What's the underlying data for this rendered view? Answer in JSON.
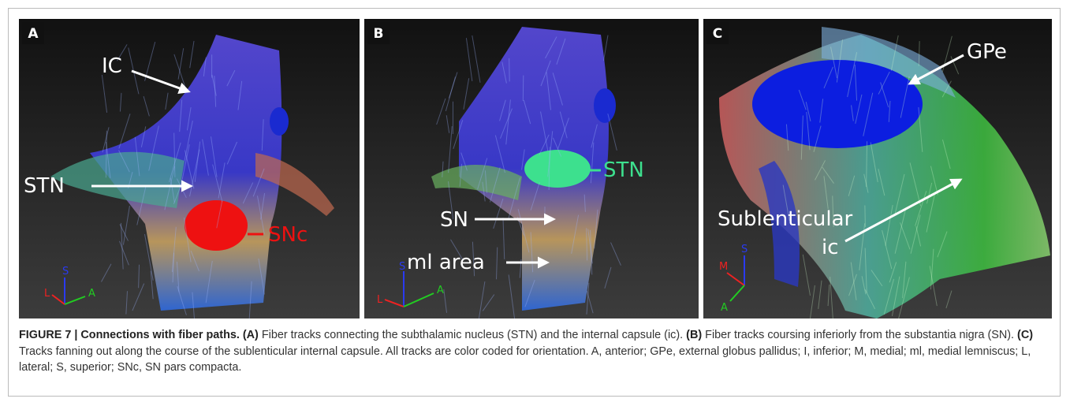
{
  "panels": [
    {
      "letter": "A",
      "labels": [
        "IC",
        "STN",
        "SNc"
      ],
      "axes": [
        "S",
        "L",
        "A"
      ]
    },
    {
      "letter": "B",
      "labels": [
        "STN",
        "SN",
        "ml area"
      ],
      "axes": [
        "S",
        "L",
        "A"
      ]
    },
    {
      "letter": "C",
      "labels": [
        "GPe",
        "Sublenticular",
        "ic"
      ],
      "axes": [
        "M",
        "S",
        "A"
      ]
    }
  ],
  "caption": [
    {
      "text": "FIGURE 7 | Connections with fiber paths.",
      "bold": true
    },
    {
      "text": "(A)",
      "bold": true
    },
    {
      "text": "Fiber tracks connecting the subthalamic nucleus (STN) and the internal capsule (ic).",
      "bold": false
    },
    {
      "text": "(B)",
      "bold": true
    },
    {
      "text": "Fiber tracks coursing inferiorly from the substantia nigra (SN).",
      "bold": false
    },
    {
      "text": "(C)",
      "bold": true
    },
    {
      "text": "Tracks fanning out along the course of the sublenticular internal capsule. All tracks are color coded for orientation. A, anterior; GPe, external globus pallidus; I, inferior; M, medial; ml, medial lemniscus; L, lateral; S, superior; SNc, SN pars compacta.",
      "bold": false
    }
  ]
}
